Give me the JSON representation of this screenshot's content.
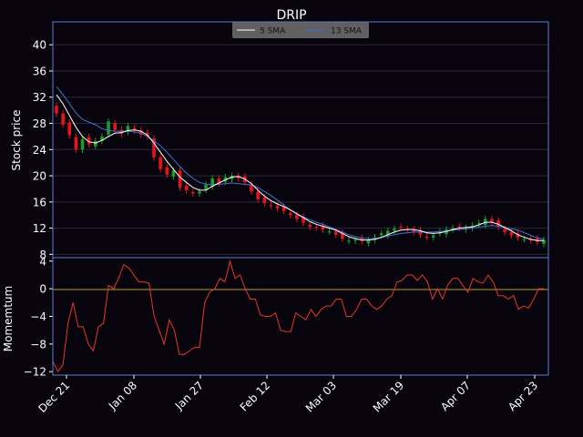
{
  "chart_data": [
    {
      "type": "candlestick",
      "title": "DRIP",
      "ylabel": "Stock price",
      "ylim": [
        7.5,
        43.5
      ],
      "yticks": [
        8,
        12,
        16,
        20,
        24,
        28,
        32,
        36,
        40
      ],
      "xticks": [
        "Dec 21",
        "Jan 08",
        "Jan 27",
        "Feb 12",
        "Mar 03",
        "Mar 19",
        "Apr 07",
        "Apr 23"
      ],
      "legend": {
        "position": "top-center",
        "entries": [
          "5 SMA",
          "13 SMA"
        ]
      },
      "colors": {
        "up": "#1a9e2a",
        "down": "#e8141c",
        "sma5": "#ffffff",
        "sma13": "#3f72d6",
        "axes": "#5b7fd8",
        "grid": "#2a2a36"
      },
      "close": [
        29.5,
        27.8,
        26.2,
        24.0,
        25.6,
        24.8,
        25.3,
        26.0,
        28.3,
        27.0,
        26.4,
        27.6,
        26.9,
        26.3,
        26.0,
        22.8,
        21.0,
        20.2,
        20.8,
        18.2,
        17.8,
        17.3,
        17.6,
        18.6,
        19.6,
        18.8,
        19.8,
        20.0,
        19.6,
        19.0,
        17.6,
        16.4,
        15.8,
        15.4,
        15.0,
        14.6,
        14.0,
        13.4,
        12.8,
        12.2,
        12.1,
        11.8,
        11.5,
        11.0,
        10.4,
        10.1,
        10.2,
        10.0,
        10.2,
        10.6,
        11.2,
        11.6,
        11.9,
        12.2,
        11.8,
        11.4,
        11.0,
        10.6,
        10.9,
        11.4,
        11.8,
        12.0,
        12.1,
        12.0,
        12.4,
        12.8,
        13.4,
        12.9,
        12.2,
        11.4,
        10.9,
        10.6,
        10.3,
        10.1,
        9.9,
        10.2
      ],
      "sma5": [
        32.4,
        31.0,
        29.2,
        27.4,
        26.0,
        25.2,
        25.0,
        25.4,
        26.0,
        26.5,
        26.6,
        26.9,
        27.0,
        26.8,
        26.2,
        25.0,
        23.6,
        22.2,
        21.0,
        19.8,
        19.0,
        18.2,
        17.8,
        17.8,
        18.4,
        18.9,
        19.4,
        19.8,
        19.9,
        19.5,
        18.8,
        17.8,
        16.9,
        16.2,
        15.7,
        15.3,
        14.8,
        14.2,
        13.6,
        13.0,
        12.6,
        12.3,
        12.0,
        11.7,
        11.2,
        10.7,
        10.4,
        10.2,
        10.2,
        10.3,
        10.6,
        11.0,
        11.4,
        11.7,
        11.8,
        11.8,
        11.6,
        11.3,
        11.2,
        11.3,
        11.5,
        11.8,
        12.0,
        12.1,
        12.2,
        12.5,
        12.9,
        12.9,
        12.6,
        12.1,
        11.6,
        11.0,
        10.6,
        10.3,
        10.1,
        10.1
      ],
      "sma13": [
        33.6,
        32.4,
        31.0,
        29.6,
        28.6,
        28.2,
        27.8,
        27.2,
        26.9,
        26.8,
        26.8,
        26.8,
        26.7,
        26.5,
        26.0,
        25.3,
        24.6,
        23.6,
        22.5,
        21.4,
        20.4,
        19.6,
        19.0,
        18.7,
        18.6,
        18.7,
        18.8,
        18.9,
        18.8,
        18.7,
        18.6,
        18.2,
        17.6,
        17.0,
        16.3,
        15.5,
        14.8,
        14.2,
        13.7,
        13.3,
        12.9,
        12.6,
        12.2,
        11.8,
        11.4,
        11.0,
        10.7,
        10.5,
        10.4,
        10.4,
        10.6,
        10.8,
        11.0,
        11.2,
        11.3,
        11.4,
        11.4,
        11.4,
        11.4,
        11.5,
        11.6,
        11.7,
        11.8,
        11.9,
        12.0,
        12.2,
        12.3,
        12.4,
        12.3,
        12.1,
        11.9,
        11.7,
        11.3,
        10.9,
        10.5,
        10.3
      ]
    },
    {
      "type": "line",
      "ylabel": "Momemtum",
      "ylim": [
        -12.5,
        4.5
      ],
      "yticks": [
        4,
        0,
        -4,
        -8,
        -12
      ],
      "colors": {
        "line": "#e8372a",
        "zero": "#b8a020"
      },
      "values": [
        -10.5,
        -12.0,
        -11.0,
        -5.0,
        -2.0,
        -5.5,
        -5.5,
        -8.0,
        -9.0,
        -5.5,
        -5.0,
        0.5,
        0.0,
        1.5,
        3.5,
        3.0,
        2.0,
        1.0,
        1.0,
        0.8,
        -4.0,
        -6.0,
        -8.0,
        -4.5,
        -6.0,
        -9.5,
        -9.5,
        -9.0,
        -8.5,
        -8.5,
        -2.0,
        -0.5,
        0.0,
        1.5,
        1.0,
        4.0,
        1.5,
        2.0,
        0.0,
        -1.5,
        -1.5,
        -3.8,
        -4.0,
        -4.0,
        -3.5,
        -6.0,
        -6.2,
        -6.2,
        -3.5,
        -4.0,
        -4.5,
        -3.0,
        -4.0,
        -3.0,
        -2.5,
        -2.5,
        -1.5,
        -1.5,
        -4.0,
        -4.0,
        -3.0,
        -1.5,
        -1.5,
        -2.5,
        -3.0,
        -2.5,
        -1.5,
        -1.0,
        1.0,
        1.2,
        2.0,
        2.0,
        1.2,
        2.0,
        1.0,
        -1.5,
        0.0,
        -1.5,
        0.5,
        1.5,
        1.5,
        0.5,
        -0.5,
        1.5,
        1.0,
        0.8,
        2.0,
        1.0,
        -1.0,
        -1.0,
        -1.5,
        -1.0,
        -3.0,
        -2.5,
        -2.8,
        -1.5,
        0.0,
        0.0
      ]
    }
  ]
}
